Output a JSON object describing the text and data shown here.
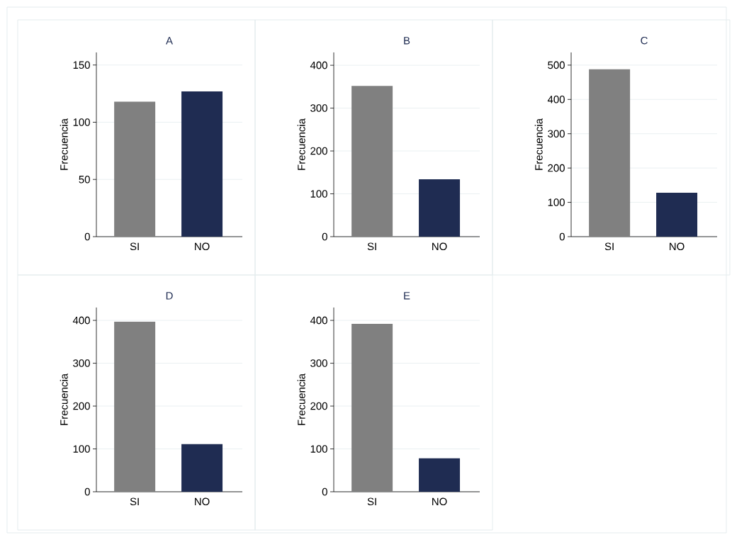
{
  "chart_data": [
    {
      "type": "bar",
      "title": "A",
      "ylabel": "Frecuencia",
      "categories": [
        "SI",
        "NO"
      ],
      "values": [
        118,
        127
      ],
      "colors": [
        "#808080",
        "#1f2c52"
      ],
      "ylim": [
        0,
        161
      ],
      "yticks": [
        0,
        50,
        100,
        150
      ],
      "grid": "y"
    },
    {
      "type": "bar",
      "title": "B",
      "ylabel": "Frecuencia",
      "categories": [
        "SI",
        "NO"
      ],
      "values": [
        352,
        134
      ],
      "colors": [
        "#808080",
        "#1f2c52"
      ],
      "ylim": [
        0,
        430
      ],
      "yticks": [
        0,
        100,
        200,
        300,
        400
      ],
      "grid": "y"
    },
    {
      "type": "bar",
      "title": "C",
      "ylabel": "Frecuencia",
      "categories": [
        "SI",
        "NO"
      ],
      "values": [
        488,
        128
      ],
      "colors": [
        "#808080",
        "#1f2c52"
      ],
      "ylim": [
        0,
        537
      ],
      "yticks": [
        0,
        100,
        200,
        300,
        400,
        500
      ],
      "grid": "y"
    },
    {
      "type": "bar",
      "title": "D",
      "ylabel": "Frecuencia",
      "categories": [
        "SI",
        "NO"
      ],
      "values": [
        397,
        111
      ],
      "colors": [
        "#808080",
        "#1f2c52"
      ],
      "ylim": [
        0,
        430
      ],
      "yticks": [
        0,
        100,
        200,
        300,
        400
      ],
      "grid": "y"
    },
    {
      "type": "bar",
      "title": "E",
      "ylabel": "Frecuencia",
      "categories": [
        "SI",
        "NO"
      ],
      "values": [
        392,
        78
      ],
      "colors": [
        "#808080",
        "#1f2c52"
      ],
      "ylim": [
        0,
        430
      ],
      "yticks": [
        0,
        100,
        200,
        300,
        400
      ],
      "grid": "y"
    }
  ]
}
